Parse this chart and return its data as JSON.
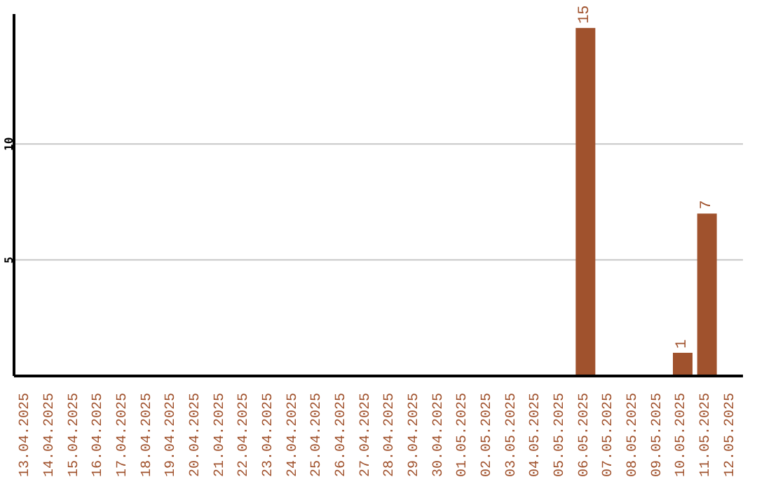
{
  "chart_data": {
    "type": "bar",
    "categories": [
      "13.04.2025",
      "14.04.2025",
      "15.04.2025",
      "16.04.2025",
      "17.04.2025",
      "18.04.2025",
      "19.04.2025",
      "20.04.2025",
      "21.04.2025",
      "22.04.2025",
      "23.04.2025",
      "24.04.2025",
      "25.04.2025",
      "26.04.2025",
      "27.04.2025",
      "28.04.2025",
      "29.04.2025",
      "30.04.2025",
      "01.05.2025",
      "02.05.2025",
      "03.05.2025",
      "04.05.2025",
      "05.05.2025",
      "06.05.2025",
      "07.05.2025",
      "08.05.2025",
      "09.05.2025",
      "10.05.2025",
      "11.05.2025",
      "12.05.2025"
    ],
    "values": [
      0,
      0,
      0,
      0,
      0,
      0,
      0,
      0,
      0,
      0,
      0,
      0,
      0,
      0,
      0,
      0,
      0,
      0,
      0,
      0,
      0,
      0,
      0,
      15,
      0,
      0,
      0,
      1,
      7,
      0
    ],
    "value_labels": [
      null,
      null,
      null,
      null,
      null,
      null,
      null,
      null,
      null,
      null,
      null,
      null,
      null,
      null,
      null,
      null,
      null,
      null,
      null,
      null,
      null,
      null,
      null,
      "15",
      null,
      null,
      null,
      "1",
      "7",
      null
    ],
    "color": "#a0522d",
    "ylim": [
      0,
      15.6
    ],
    "yticks": [
      5,
      10
    ],
    "grid": "y"
  }
}
